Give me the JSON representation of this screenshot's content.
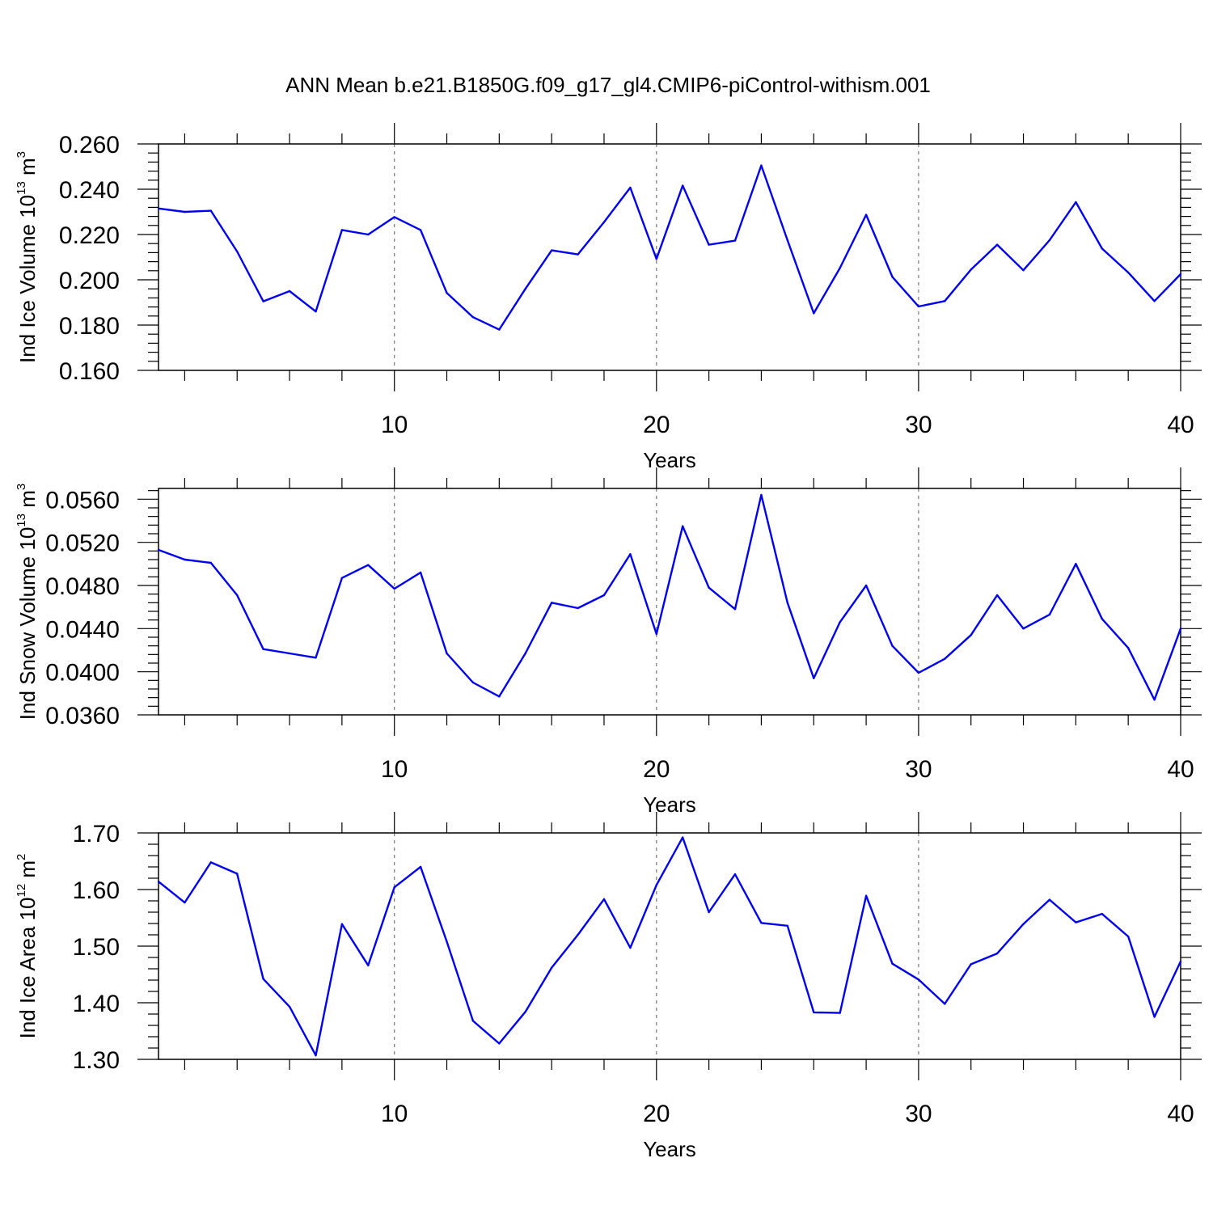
{
  "figure": {
    "title": "ANN Mean b.e21.B1850G.f09_g17_gl4.CMIP6-piControl-withism.001",
    "line_color": "#0000ee",
    "grid_color": "#777777"
  },
  "chart_data": [
    {
      "type": "line",
      "name": "ind-ice-volume",
      "ylabel": {
        "main": "Ind Ice Volume 10",
        "sup": "13",
        "post": " m",
        "unit_sup": "3"
      },
      "xlabel": "Years",
      "xlim": [
        1,
        40
      ],
      "ylim": [
        0.16,
        0.26
      ],
      "yticks": [
        "0.160",
        "0.180",
        "0.200",
        "0.220",
        "0.240",
        "0.260"
      ],
      "xticks": [
        "10",
        "20",
        "30",
        "40"
      ],
      "grid_x": [
        10,
        20,
        30
      ],
      "x": [
        1,
        2,
        3,
        4,
        5,
        6,
        7,
        8,
        9,
        10,
        11,
        12,
        13,
        14,
        15,
        16,
        17,
        18,
        19,
        20,
        21,
        22,
        23,
        24,
        25,
        26,
        27,
        28,
        29,
        30,
        31,
        32,
        33,
        34,
        35,
        36,
        37,
        38,
        39,
        40
      ],
      "values": [
        0.2315,
        0.23,
        0.2305,
        0.2125,
        0.1905,
        0.195,
        0.186,
        0.222,
        0.22,
        0.2277,
        0.222,
        0.1942,
        0.1835,
        0.178,
        0.196,
        0.213,
        0.2112,
        0.2255,
        0.2407,
        0.2092,
        0.2416,
        0.2155,
        0.2173,
        0.2505,
        0.2175,
        0.1852,
        0.2052,
        0.2287,
        0.2013,
        0.1882,
        0.1906,
        0.2045,
        0.2155,
        0.2042,
        0.2175,
        0.2343,
        0.2138,
        0.2032,
        0.1906,
        0.2025
      ]
    },
    {
      "type": "line",
      "name": "ind-snow-volume",
      "ylabel": {
        "main": "Ind Snow Volume 10",
        "sup": "13",
        "post": " m",
        "unit_sup": "3"
      },
      "xlabel": "Years",
      "xlim": [
        1,
        40
      ],
      "ylim": [
        0.036,
        0.057
      ],
      "yticks": [
        "0.0360",
        "0.0400",
        "0.0440",
        "0.0480",
        "0.0520",
        "0.0560"
      ],
      "ytick_values": [
        0.036,
        0.04,
        0.044,
        0.048,
        0.052,
        0.056
      ],
      "xticks": [
        "10",
        "20",
        "30",
        "40"
      ],
      "grid_x": [
        10,
        20,
        30
      ],
      "x": [
        1,
        2,
        3,
        4,
        5,
        6,
        7,
        8,
        9,
        10,
        11,
        12,
        13,
        14,
        15,
        16,
        17,
        18,
        19,
        20,
        21,
        22,
        23,
        24,
        25,
        26,
        27,
        28,
        29,
        30,
        31,
        32,
        33,
        34,
        35,
        36,
        37,
        38,
        39,
        40
      ],
      "values": [
        0.0513,
        0.0504,
        0.0501,
        0.0471,
        0.0421,
        0.0417,
        0.0413,
        0.0487,
        0.0499,
        0.0477,
        0.0492,
        0.0417,
        0.039,
        0.0377,
        0.0417,
        0.0464,
        0.0459,
        0.0471,
        0.0509,
        0.0435,
        0.0535,
        0.0478,
        0.0458,
        0.0564,
        0.0464,
        0.0394,
        0.0446,
        0.048,
        0.0424,
        0.0399,
        0.0412,
        0.0434,
        0.0471,
        0.044,
        0.0453,
        0.05,
        0.0449,
        0.0422,
        0.0374,
        0.044
      ]
    },
    {
      "type": "line",
      "name": "ind-ice-area",
      "ylabel": {
        "main": "Ind Ice Area 10",
        "sup": "12",
        "post": " m",
        "unit_sup": "2"
      },
      "xlabel": "Years",
      "xlim": [
        1,
        40
      ],
      "ylim": [
        1.3,
        1.7
      ],
      "yticks": [
        "1.30",
        "1.40",
        "1.50",
        "1.60",
        "1.70"
      ],
      "xticks": [
        "10",
        "20",
        "30",
        "40"
      ],
      "grid_x": [
        10,
        20,
        30
      ],
      "x": [
        1,
        2,
        3,
        4,
        5,
        6,
        7,
        8,
        9,
        10,
        11,
        12,
        13,
        14,
        15,
        16,
        17,
        18,
        19,
        20,
        21,
        22,
        23,
        24,
        25,
        26,
        27,
        28,
        29,
        30,
        31,
        32,
        33,
        34,
        35,
        36,
        37,
        38,
        39,
        40
      ],
      "values": [
        1.614,
        1.577,
        1.648,
        1.628,
        1.442,
        1.393,
        1.307,
        1.539,
        1.466,
        1.604,
        1.64,
        1.508,
        1.368,
        1.328,
        1.384,
        1.462,
        1.52,
        1.583,
        1.497,
        1.608,
        1.692,
        1.56,
        1.627,
        1.541,
        1.536,
        1.383,
        1.382,
        1.589,
        1.469,
        1.441,
        1.398,
        1.468,
        1.487,
        1.539,
        1.582,
        1.542,
        1.557,
        1.517,
        1.375,
        1.473
      ]
    }
  ]
}
